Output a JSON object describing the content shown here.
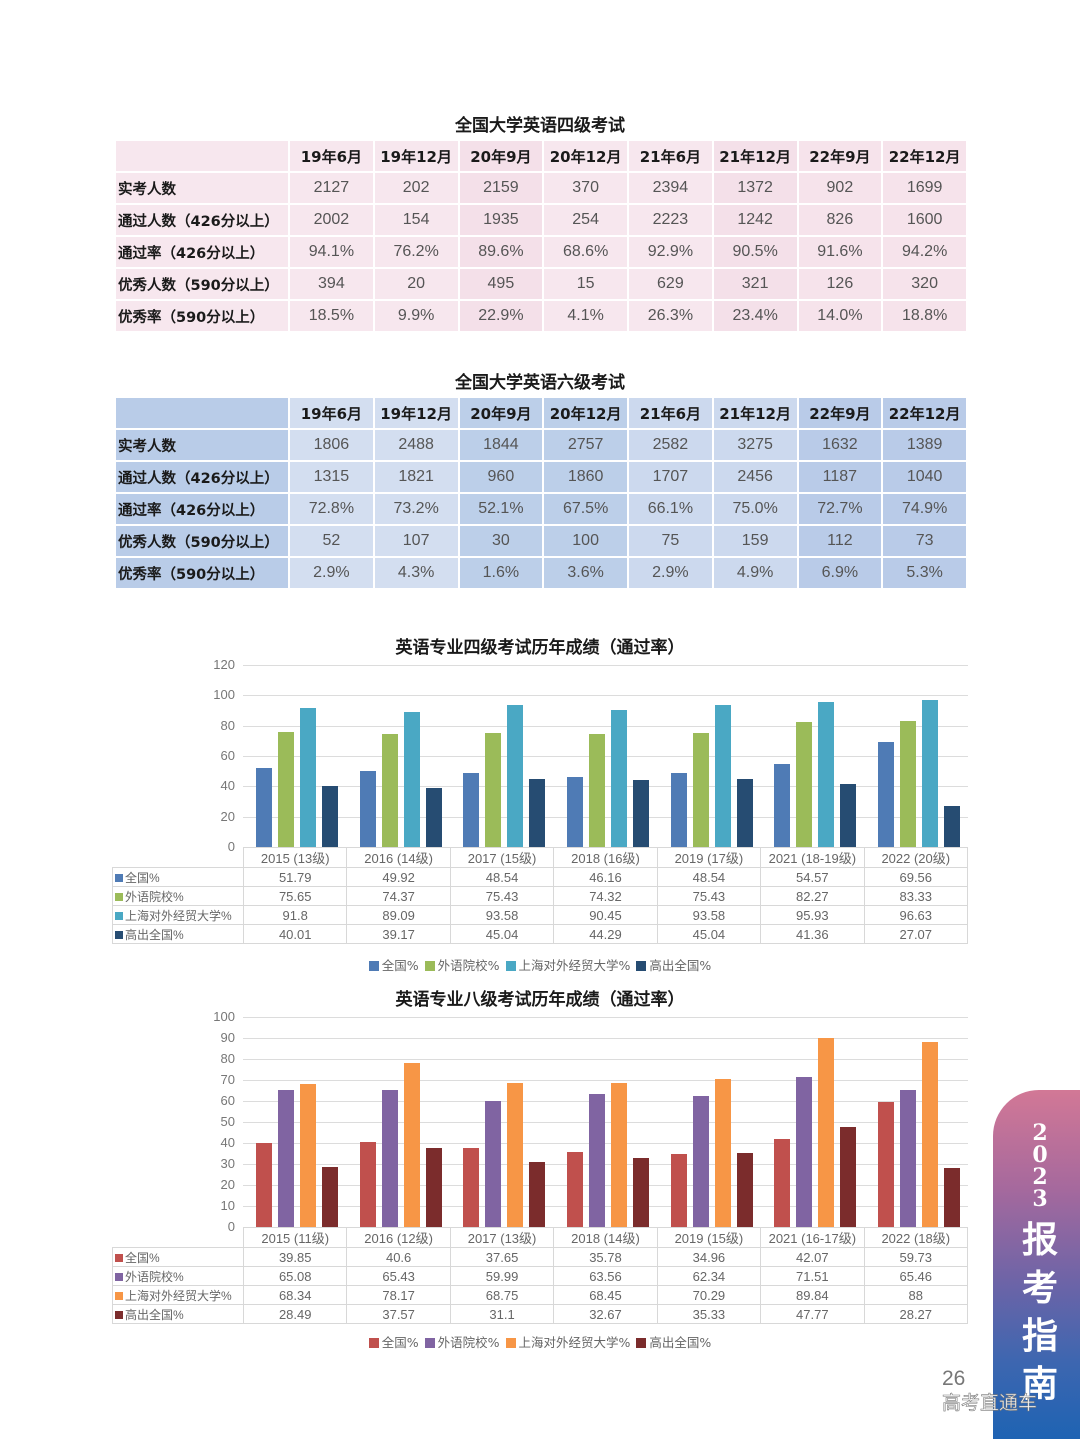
{
  "cet4": {
    "title": "全国大学英语四级考试",
    "columns": [
      "19年6月",
      "19年12月",
      "20年9月",
      "20年12月",
      "21年6月",
      "21年12月",
      "22年9月",
      "22年12月"
    ],
    "rows": [
      {
        "label": "实考人数",
        "values": [
          "2127",
          "202",
          "2159",
          "370",
          "2394",
          "1372",
          "902",
          "1699"
        ]
      },
      {
        "label": "通过人数（426分以上）",
        "values": [
          "2002",
          "154",
          "1935",
          "254",
          "2223",
          "1242",
          "826",
          "1600"
        ]
      },
      {
        "label": "通过率（426分以上）",
        "values": [
          "94.1%",
          "76.2%",
          "89.6%",
          "68.6%",
          "92.9%",
          "90.5%",
          "91.6%",
          "94.2%"
        ]
      },
      {
        "label": "优秀人数（590分以上）",
        "values": [
          "394",
          "20",
          "495",
          "15",
          "629",
          "321",
          "126",
          "320"
        ]
      },
      {
        "label": "优秀率（590分以上）",
        "values": [
          "18.5%",
          "9.9%",
          "22.9%",
          "4.1%",
          "26.3%",
          "23.4%",
          "14.0%",
          "18.8%"
        ]
      }
    ]
  },
  "cet6": {
    "title": "全国大学英语六级考试",
    "columns": [
      "19年6月",
      "19年12月",
      "20年9月",
      "20年12月",
      "21年6月",
      "21年12月",
      "22年9月",
      "22年12月"
    ],
    "rows": [
      {
        "label": "实考人数",
        "values": [
          "1806",
          "2488",
          "1844",
          "2757",
          "2582",
          "3275",
          "1632",
          "1389"
        ]
      },
      {
        "label": "通过人数（426分以上）",
        "values": [
          "1315",
          "1821",
          "960",
          "1860",
          "1707",
          "2456",
          "1187",
          "1040"
        ]
      },
      {
        "label": "通过率（426分以上）",
        "values": [
          "72.8%",
          "73.2%",
          "52.1%",
          "67.5%",
          "66.1%",
          "75.0%",
          "72.7%",
          "74.9%"
        ]
      },
      {
        "label": "优秀人数（590分以上）",
        "values": [
          "52",
          "107",
          "30",
          "100",
          "75",
          "159",
          "112",
          "73"
        ]
      },
      {
        "label": "优秀率（590分以上）",
        "values": [
          "2.9%",
          "4.3%",
          "1.6%",
          "3.6%",
          "2.9%",
          "4.9%",
          "6.9%",
          "5.3%"
        ]
      }
    ]
  },
  "chart_data": [
    {
      "type": "bar",
      "title": "英语专业四级考试历年成绩（通过率）",
      "xlabel": "",
      "ylabel": "",
      "ylim": [
        0,
        120
      ],
      "yticks": [
        0,
        20,
        40,
        60,
        80,
        100,
        120
      ],
      "grid": true,
      "legend_position": "bottom",
      "categories": [
        "2015 (13级)",
        "2016 (14级)",
        "2017 (15级)",
        "2018 (16级)",
        "2019 (17级)",
        "2021 (18-19级)",
        "2022 (20级)"
      ],
      "series": [
        {
          "name": "全国%",
          "color": "#4f7bb5",
          "values": [
            51.79,
            49.92,
            48.54,
            46.16,
            48.54,
            54.57,
            69.56
          ]
        },
        {
          "name": "外语院校%",
          "color": "#9bbb59",
          "values": [
            75.65,
            74.37,
            75.43,
            74.32,
            75.43,
            82.27,
            83.33
          ]
        },
        {
          "name": "上海对外经贸大学%",
          "color": "#4aa8c4",
          "values": [
            91.8,
            89.09,
            93.58,
            90.45,
            93.58,
            95.93,
            96.63
          ]
        },
        {
          "name": "高出全国%",
          "color": "#264c72",
          "values": [
            40.01,
            39.17,
            45.04,
            44.29,
            45.04,
            41.36,
            27.07
          ]
        }
      ]
    },
    {
      "type": "bar",
      "title": "英语专业八级考试历年成绩（通过率）",
      "xlabel": "",
      "ylabel": "",
      "ylim": [
        0,
        100
      ],
      "yticks": [
        0,
        10,
        20,
        30,
        40,
        50,
        60,
        70,
        80,
        90,
        100
      ],
      "grid": true,
      "legend_position": "bottom",
      "categories": [
        "2015 (11级)",
        "2016 (12级)",
        "2017 (13级)",
        "2018 (14级)",
        "2019 (15级)",
        "2021 (16-17级)",
        "2022 (18级)"
      ],
      "series": [
        {
          "name": "全国%",
          "color": "#c0504d",
          "values": [
            39.85,
            40.6,
            37.65,
            35.78,
            34.96,
            42.07,
            59.73
          ]
        },
        {
          "name": "外语院校%",
          "color": "#8064a2",
          "values": [
            65.08,
            65.43,
            59.99,
            63.56,
            62.34,
            71.51,
            65.46
          ]
        },
        {
          "name": "上海对外经贸大学%",
          "color": "#f79646",
          "values": [
            68.34,
            78.17,
            68.75,
            68.45,
            70.29,
            89.84,
            88
          ]
        },
        {
          "name": "高出全国%",
          "color": "#7b2c2c",
          "values": [
            28.49,
            37.57,
            31.1,
            32.67,
            35.33,
            47.77,
            28.27
          ]
        }
      ]
    }
  ],
  "side_banner": {
    "year": "2023",
    "chars": [
      "报",
      "考",
      "指",
      "南"
    ]
  },
  "footer": {
    "page_number": "26",
    "watermark": "高考直通车"
  }
}
